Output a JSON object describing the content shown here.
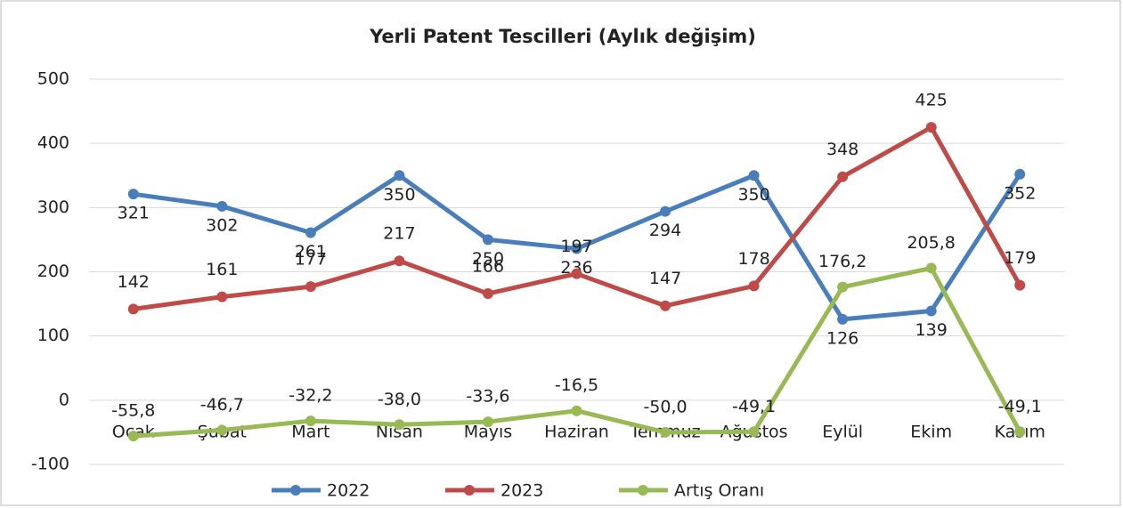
{
  "chart_data": {
    "type": "line",
    "title": "Yerli Patent Tescilleri (Aylık değişim)",
    "categories": [
      "Ocak",
      "Şubat",
      "Mart",
      "Nisan",
      "Mayıs",
      "Haziran",
      "Temmuz",
      "Ağustos",
      "Eylül",
      "Ekim",
      "Kasım"
    ],
    "series": [
      {
        "name": "2022",
        "color": "#4a7ebb",
        "values": [
          321,
          302,
          261,
          350,
          250,
          236,
          294,
          350,
          126,
          139,
          352
        ]
      },
      {
        "name": "2023",
        "color": "#be4b48",
        "values": [
          142,
          161,
          177,
          217,
          166,
          197,
          147,
          178,
          348,
          425,
          179
        ]
      },
      {
        "name": "Artış Oranı",
        "color": "#98b954",
        "values": [
          -55.8,
          -46.7,
          -32.2,
          -38.0,
          -33.6,
          -16.5,
          -50.0,
          -49.1,
          176.2,
          205.8,
          -49.1
        ],
        "value_labels": [
          "-55,8",
          "-46,7",
          "-32,2",
          "-38,0",
          "-33,6",
          "-16,5",
          "-50,0",
          "-49,1",
          "176,2",
          "205,8",
          "-49,1"
        ]
      }
    ],
    "ylim": [
      -100,
      500
    ],
    "yticks": [
      -100,
      0,
      100,
      200,
      300,
      400,
      500
    ],
    "grid": true,
    "legend": "bottom"
  }
}
